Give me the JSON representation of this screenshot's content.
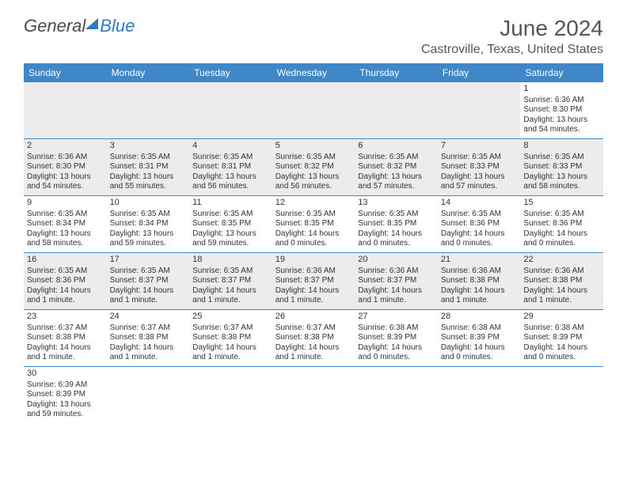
{
  "logo": {
    "text1": "General",
    "text2": "Blue"
  },
  "title": "June 2024",
  "location": "Castroville, Texas, United States",
  "colors": {
    "header_bg": "#3f87c7",
    "header_text": "#ffffff",
    "cell_border": "#3f87c7",
    "shaded_bg": "#ececec",
    "text": "#333333",
    "title_text": "#555555",
    "logo_blue": "#2b7cc4",
    "logo_gray": "#4a4a4a"
  },
  "daysOfWeek": [
    "Sunday",
    "Monday",
    "Tuesday",
    "Wednesday",
    "Thursday",
    "Friday",
    "Saturday"
  ],
  "grid": [
    [
      {
        "empty": true,
        "shaded": true
      },
      {
        "empty": true,
        "shaded": true
      },
      {
        "empty": true,
        "shaded": true
      },
      {
        "empty": true,
        "shaded": true
      },
      {
        "empty": true,
        "shaded": true
      },
      {
        "empty": true,
        "shaded": true
      },
      {
        "day": "1",
        "sunrise": "Sunrise: 6:36 AM",
        "sunset": "Sunset: 8:30 PM",
        "daylight": "Daylight: 13 hours and 54 minutes."
      }
    ],
    [
      {
        "day": "2",
        "sunrise": "Sunrise: 6:36 AM",
        "sunset": "Sunset: 8:30 PM",
        "daylight": "Daylight: 13 hours and 54 minutes.",
        "shaded": true
      },
      {
        "day": "3",
        "sunrise": "Sunrise: 6:35 AM",
        "sunset": "Sunset: 8:31 PM",
        "daylight": "Daylight: 13 hours and 55 minutes.",
        "shaded": true
      },
      {
        "day": "4",
        "sunrise": "Sunrise: 6:35 AM",
        "sunset": "Sunset: 8:31 PM",
        "daylight": "Daylight: 13 hours and 56 minutes.",
        "shaded": true
      },
      {
        "day": "5",
        "sunrise": "Sunrise: 6:35 AM",
        "sunset": "Sunset: 8:32 PM",
        "daylight": "Daylight: 13 hours and 56 minutes.",
        "shaded": true
      },
      {
        "day": "6",
        "sunrise": "Sunrise: 6:35 AM",
        "sunset": "Sunset: 8:32 PM",
        "daylight": "Daylight: 13 hours and 57 minutes.",
        "shaded": true
      },
      {
        "day": "7",
        "sunrise": "Sunrise: 6:35 AM",
        "sunset": "Sunset: 8:33 PM",
        "daylight": "Daylight: 13 hours and 57 minutes.",
        "shaded": true
      },
      {
        "day": "8",
        "sunrise": "Sunrise: 6:35 AM",
        "sunset": "Sunset: 8:33 PM",
        "daylight": "Daylight: 13 hours and 58 minutes.",
        "shaded": true
      }
    ],
    [
      {
        "day": "9",
        "sunrise": "Sunrise: 6:35 AM",
        "sunset": "Sunset: 8:34 PM",
        "daylight": "Daylight: 13 hours and 58 minutes."
      },
      {
        "day": "10",
        "sunrise": "Sunrise: 6:35 AM",
        "sunset": "Sunset: 8:34 PM",
        "daylight": "Daylight: 13 hours and 59 minutes."
      },
      {
        "day": "11",
        "sunrise": "Sunrise: 6:35 AM",
        "sunset": "Sunset: 8:35 PM",
        "daylight": "Daylight: 13 hours and 59 minutes."
      },
      {
        "day": "12",
        "sunrise": "Sunrise: 6:35 AM",
        "sunset": "Sunset: 8:35 PM",
        "daylight": "Daylight: 14 hours and 0 minutes."
      },
      {
        "day": "13",
        "sunrise": "Sunrise: 6:35 AM",
        "sunset": "Sunset: 8:35 PM",
        "daylight": "Daylight: 14 hours and 0 minutes."
      },
      {
        "day": "14",
        "sunrise": "Sunrise: 6:35 AM",
        "sunset": "Sunset: 8:36 PM",
        "daylight": "Daylight: 14 hours and 0 minutes."
      },
      {
        "day": "15",
        "sunrise": "Sunrise: 6:35 AM",
        "sunset": "Sunset: 8:36 PM",
        "daylight": "Daylight: 14 hours and 0 minutes."
      }
    ],
    [
      {
        "day": "16",
        "sunrise": "Sunrise: 6:35 AM",
        "sunset": "Sunset: 8:36 PM",
        "daylight": "Daylight: 14 hours and 1 minute.",
        "shaded": true
      },
      {
        "day": "17",
        "sunrise": "Sunrise: 6:35 AM",
        "sunset": "Sunset: 8:37 PM",
        "daylight": "Daylight: 14 hours and 1 minute.",
        "shaded": true
      },
      {
        "day": "18",
        "sunrise": "Sunrise: 6:35 AM",
        "sunset": "Sunset: 8:37 PM",
        "daylight": "Daylight: 14 hours and 1 minute.",
        "shaded": true
      },
      {
        "day": "19",
        "sunrise": "Sunrise: 6:36 AM",
        "sunset": "Sunset: 8:37 PM",
        "daylight": "Daylight: 14 hours and 1 minute.",
        "shaded": true
      },
      {
        "day": "20",
        "sunrise": "Sunrise: 6:36 AM",
        "sunset": "Sunset: 8:37 PM",
        "daylight": "Daylight: 14 hours and 1 minute.",
        "shaded": true
      },
      {
        "day": "21",
        "sunrise": "Sunrise: 6:36 AM",
        "sunset": "Sunset: 8:38 PM",
        "daylight": "Daylight: 14 hours and 1 minute.",
        "shaded": true
      },
      {
        "day": "22",
        "sunrise": "Sunrise: 6:36 AM",
        "sunset": "Sunset: 8:38 PM",
        "daylight": "Daylight: 14 hours and 1 minute.",
        "shaded": true
      }
    ],
    [
      {
        "day": "23",
        "sunrise": "Sunrise: 6:37 AM",
        "sunset": "Sunset: 8:38 PM",
        "daylight": "Daylight: 14 hours and 1 minute."
      },
      {
        "day": "24",
        "sunrise": "Sunrise: 6:37 AM",
        "sunset": "Sunset: 8:38 PM",
        "daylight": "Daylight: 14 hours and 1 minute."
      },
      {
        "day": "25",
        "sunrise": "Sunrise: 6:37 AM",
        "sunset": "Sunset: 8:38 PM",
        "daylight": "Daylight: 14 hours and 1 minute."
      },
      {
        "day": "26",
        "sunrise": "Sunrise: 6:37 AM",
        "sunset": "Sunset: 8:38 PM",
        "daylight": "Daylight: 14 hours and 1 minute."
      },
      {
        "day": "27",
        "sunrise": "Sunrise: 6:38 AM",
        "sunset": "Sunset: 8:39 PM",
        "daylight": "Daylight: 14 hours and 0 minutes."
      },
      {
        "day": "28",
        "sunrise": "Sunrise: 6:38 AM",
        "sunset": "Sunset: 8:39 PM",
        "daylight": "Daylight: 14 hours and 0 minutes."
      },
      {
        "day": "29",
        "sunrise": "Sunrise: 6:38 AM",
        "sunset": "Sunset: 8:39 PM",
        "daylight": "Daylight: 14 hours and 0 minutes."
      }
    ],
    [
      {
        "day": "30",
        "sunrise": "Sunrise: 6:39 AM",
        "sunset": "Sunset: 8:39 PM",
        "daylight": "Daylight: 13 hours and 59 minutes.",
        "shaded": false,
        "noborder": true
      },
      {
        "empty": true,
        "noborder": true
      },
      {
        "empty": true,
        "noborder": true
      },
      {
        "empty": true,
        "noborder": true
      },
      {
        "empty": true,
        "noborder": true
      },
      {
        "empty": true,
        "noborder": true
      },
      {
        "empty": true,
        "noborder": true
      }
    ]
  ]
}
